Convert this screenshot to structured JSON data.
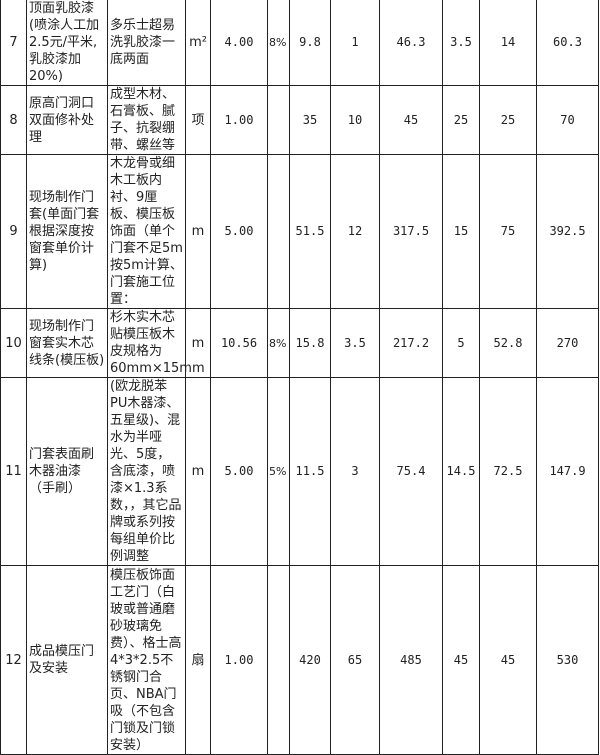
{
  "rows": [
    {
      "no": "7",
      "name": "顶面乳胶漆(喷涂人工加2.5元/平米,乳胶漆加20%)",
      "desc": "多乐士超易洗乳胶漆一底两面",
      "unit": "m²",
      "qty": "4.00",
      "loss": "8%",
      "c1": "9.8",
      "c2": "1",
      "c3": "46.3",
      "c4": "3.5",
      "c5": "14",
      "total": "60.3"
    },
    {
      "no": "8",
      "name": "原高门洞口双面修补处理",
      "desc": "成型木材、石膏板、腻子、抗裂绷带、螺丝等",
      "unit": "项",
      "qty": "1.00",
      "loss": "",
      "c1": "35",
      "c2": "10",
      "c3": "45",
      "c4": "25",
      "c5": "25",
      "total": "70"
    },
    {
      "no": "9",
      "name": "现场制作门套(单面门套根据深度按窗套单价计算)",
      "desc": "木龙骨或细木工板内衬、9厘板、模压板饰面（单个门套不足5m按5m计算、门套施工位置：",
      "unit": "m",
      "qty": "5.00",
      "loss": "",
      "c1": "51.5",
      "c2": "12",
      "c3": "317.5",
      "c4": "15",
      "c5": "75",
      "total": "392.5"
    },
    {
      "no": "10",
      "name": "现场制作门窗套实木芯线条(模压板)",
      "desc": "杉木实木芯贴模压板木皮规格为60mm×15mm",
      "unit": "m",
      "qty": "10.56",
      "loss": "8%",
      "c1": "15.8",
      "c2": "3.5",
      "c3": "217.2",
      "c4": "5",
      "c5": "52.8",
      "total": "270"
    },
    {
      "no": "11",
      "name": "门套表面刷木器油漆（手刷）",
      "desc": "(欧龙脱苯PU木器漆、五星级)、混水为半哑光、5度，含底漆，喷漆×1.3系数，，其它品牌或系列按每组单价比例调整",
      "unit": "m",
      "qty": "5.00",
      "loss": "5%",
      "c1": "11.5",
      "c2": "3",
      "c3": "75.4",
      "c4": "14.5",
      "c5": "72.5",
      "total": "147.9"
    },
    {
      "no": "12",
      "name": "成品模压门及安装",
      "desc": "模压板饰面工艺门（白玻或普通磨砂玻璃免费）、格士高4*3*2.5不锈钢门合页、NBA门吸（不包含门锁及门锁安装）",
      "unit": "扇",
      "qty": "1.00",
      "loss": "",
      "c1": "420",
      "c2": "65",
      "c3": "485",
      "c4": "45",
      "c5": "45",
      "total": "530"
    }
  ]
}
